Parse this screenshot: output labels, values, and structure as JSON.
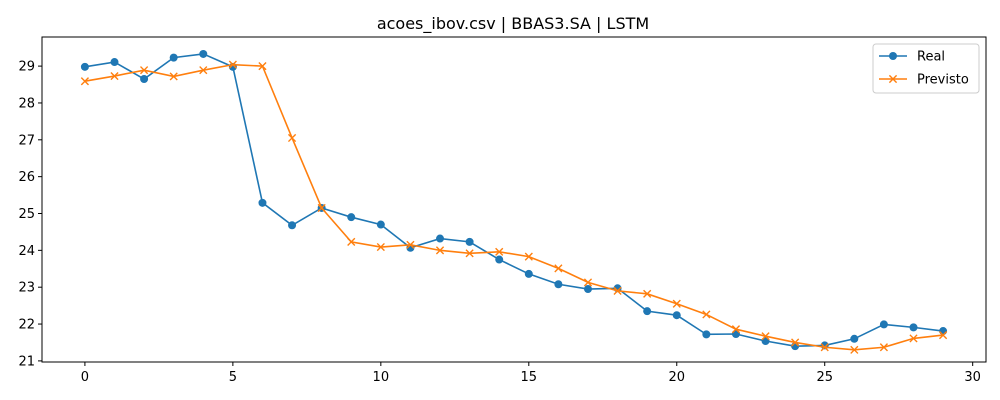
{
  "chart_data": {
    "type": "line",
    "title": "acoes_ibov.csv | BBAS3.SA | LSTM",
    "xlabel": "",
    "ylabel": "",
    "xlim": [
      -1.45,
      30.45
    ],
    "ylim": [
      20.97,
      29.79
    ],
    "x_ticks": [
      0,
      5,
      10,
      15,
      20,
      25,
      30
    ],
    "y_ticks": [
      21,
      22,
      23,
      24,
      25,
      26,
      27,
      28,
      29
    ],
    "grid": false,
    "legend": "top-right",
    "x": [
      0,
      1,
      2,
      3,
      4,
      5,
      6,
      7,
      8,
      9,
      10,
      11,
      12,
      13,
      14,
      15,
      16,
      17,
      18,
      19,
      20,
      21,
      22,
      23,
      24,
      25,
      26,
      27,
      28,
      29
    ],
    "series": [
      {
        "name": "Real",
        "color": "#1f77b4",
        "marker": "circle",
        "values": [
          28.98,
          29.11,
          28.65,
          29.23,
          29.33,
          28.98,
          25.29,
          24.68,
          25.15,
          24.9,
          24.7,
          24.07,
          24.32,
          24.23,
          23.75,
          23.36,
          23.08,
          22.95,
          22.97,
          22.35,
          22.24,
          21.72,
          21.73,
          21.54,
          21.4,
          21.42,
          21.6,
          21.99,
          21.91,
          21.81
        ]
      },
      {
        "name": "Previsto",
        "color": "#ff7f0e",
        "marker": "x",
        "values": [
          28.59,
          28.73,
          28.89,
          28.72,
          28.89,
          29.04,
          29.0,
          27.05,
          25.15,
          24.23,
          24.09,
          24.15,
          24.0,
          23.92,
          23.96,
          23.83,
          23.51,
          23.13,
          22.9,
          22.82,
          22.55,
          22.26,
          21.86,
          21.67,
          21.5,
          21.37,
          21.3,
          21.37,
          21.61,
          21.7
        ]
      }
    ]
  }
}
